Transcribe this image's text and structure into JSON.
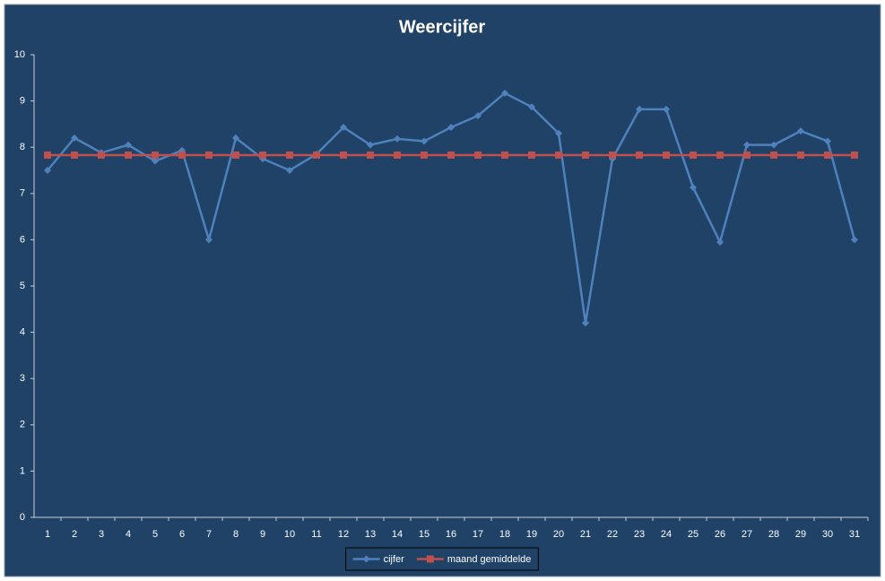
{
  "chart_data": {
    "type": "line",
    "title": "Weercijfer",
    "categories": [
      "1",
      "2",
      "3",
      "4",
      "5",
      "6",
      "7",
      "8",
      "9",
      "10",
      "11",
      "12",
      "13",
      "14",
      "15",
      "16",
      "17",
      "18",
      "19",
      "20",
      "21",
      "22",
      "23",
      "24",
      "25",
      "26",
      "27",
      "28",
      "29",
      "30",
      "31"
    ],
    "series": [
      {
        "name": "cijfer",
        "color": "#4f81bd",
        "marker": "diamond",
        "values": [
          7.5,
          8.2,
          7.88,
          8.05,
          7.7,
          7.93,
          6.0,
          8.2,
          7.75,
          7.5,
          7.85,
          8.43,
          8.05,
          8.18,
          8.13,
          8.43,
          8.68,
          9.17,
          8.87,
          8.3,
          4.2,
          7.75,
          8.82,
          8.82,
          7.13,
          5.95,
          8.05,
          8.05,
          8.35,
          8.13,
          6.0
        ]
      },
      {
        "name": "maand gemiddelde",
        "color": "#c0504d",
        "marker": "square",
        "values": [
          7.83,
          7.83,
          7.83,
          7.83,
          7.83,
          7.83,
          7.83,
          7.83,
          7.83,
          7.83,
          7.83,
          7.83,
          7.83,
          7.83,
          7.83,
          7.83,
          7.83,
          7.83,
          7.83,
          7.83,
          7.83,
          7.83,
          7.83,
          7.83,
          7.83,
          7.83,
          7.83,
          7.83,
          7.83,
          7.83,
          7.83
        ]
      }
    ],
    "ylim": [
      0,
      10
    ],
    "yticks": [
      0,
      1,
      2,
      3,
      4,
      5,
      6,
      7,
      8,
      9,
      10
    ],
    "grid": false,
    "legend": "bottom"
  }
}
